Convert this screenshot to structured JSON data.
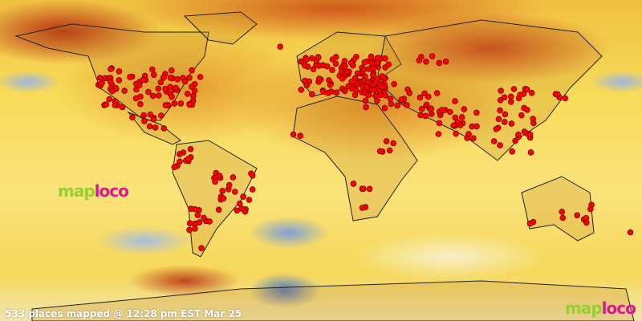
{
  "map": {
    "status_text": "533 places mapped @ 12:28 pm EST Mar 25",
    "logo": {
      "part1": "map",
      "part2": "loco"
    },
    "marker_color": "#ff0000",
    "colors": {
      "warm": "#c8401a",
      "base": "#f8dc5a",
      "cool": "#4d74c0"
    }
  }
}
